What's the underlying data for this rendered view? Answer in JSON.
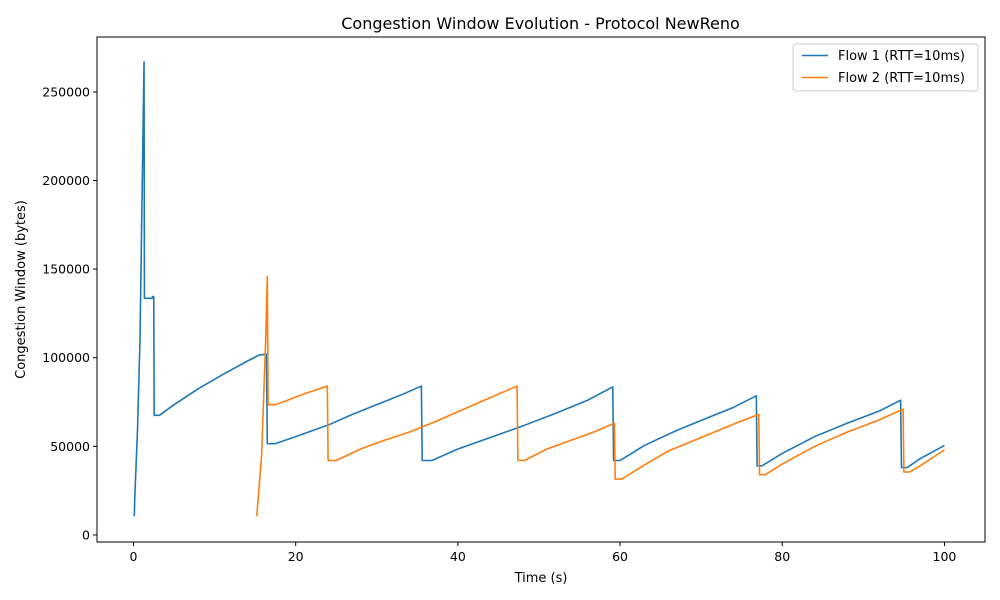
{
  "chart_data": {
    "type": "line",
    "title": "Congestion Window Evolution - Protocol NewReno",
    "xlabel": "Time (s)",
    "ylabel": "Congestion Window (bytes)",
    "xlim": [
      -4.5,
      105
    ],
    "ylim": [
      -4000,
      281000
    ],
    "xticks": [
      0,
      20,
      40,
      60,
      80,
      100
    ],
    "yticks": [
      0,
      50000,
      100000,
      150000,
      200000,
      250000
    ],
    "grid": false,
    "legend": "top-right",
    "series": [
      {
        "name": "Flow 1 (RTT=10ms)",
        "color": "#1f77b4",
        "points": [
          [
            0.1,
            10500
          ],
          [
            0.15,
            20000
          ],
          [
            0.5,
            60000
          ],
          [
            0.8,
            110000
          ],
          [
            1.3,
            267000
          ],
          [
            1.35,
            133500
          ],
          [
            2.3,
            133500
          ],
          [
            2.35,
            134500
          ],
          [
            2.5,
            134500
          ],
          [
            2.55,
            67500
          ],
          [
            3.2,
            67500
          ],
          [
            5,
            73500
          ],
          [
            8,
            82500
          ],
          [
            11,
            90500
          ],
          [
            14,
            98000
          ],
          [
            15.5,
            101500
          ],
          [
            16.4,
            102000
          ],
          [
            16.5,
            51500
          ],
          [
            17.5,
            51500
          ],
          [
            20,
            55500
          ],
          [
            24,
            62000
          ],
          [
            27,
            68000
          ],
          [
            30,
            73500
          ],
          [
            33,
            79000
          ],
          [
            35.5,
            84000
          ],
          [
            35.6,
            42000
          ],
          [
            36.8,
            42000
          ],
          [
            40,
            48500
          ],
          [
            44,
            55000
          ],
          [
            48,
            61500
          ],
          [
            52,
            68500
          ],
          [
            56,
            76000
          ],
          [
            59.1,
            83500
          ],
          [
            59.2,
            42000
          ],
          [
            60,
            42000
          ],
          [
            63,
            50500
          ],
          [
            67,
            59000
          ],
          [
            71,
            66500
          ],
          [
            74,
            72000
          ],
          [
            76.8,
            78500
          ],
          [
            76.9,
            39000
          ],
          [
            77.5,
            39000
          ],
          [
            80,
            46000
          ],
          [
            84,
            55500
          ],
          [
            88,
            63000
          ],
          [
            92,
            70000
          ],
          [
            94.6,
            76000
          ],
          [
            94.7,
            38000
          ],
          [
            95.4,
            38000
          ],
          [
            97,
            43000
          ],
          [
            100,
            50500
          ]
        ]
      },
      {
        "name": "Flow 2 (RTT=10ms)",
        "color": "#ff7f0e",
        "points": [
          [
            15.2,
            10500
          ],
          [
            15.8,
            45000
          ],
          [
            16.3,
            110000
          ],
          [
            16.5,
            146000
          ],
          [
            16.6,
            73500
          ],
          [
            17.5,
            73500
          ],
          [
            19,
            76000
          ],
          [
            21,
            79500
          ],
          [
            23.9,
            84000
          ],
          [
            24,
            42000
          ],
          [
            25,
            42000
          ],
          [
            28,
            48500
          ],
          [
            31,
            53500
          ],
          [
            34,
            58000
          ],
          [
            37,
            63500
          ],
          [
            40,
            69500
          ],
          [
            43,
            75500
          ],
          [
            47.3,
            84000
          ],
          [
            47.4,
            42000
          ],
          [
            48.2,
            42000
          ],
          [
            51,
            48500
          ],
          [
            54,
            53500
          ],
          [
            57,
            58500
          ],
          [
            59.3,
            63000
          ],
          [
            59.4,
            31500
          ],
          [
            60.2,
            31500
          ],
          [
            63,
            39500
          ],
          [
            66,
            47500
          ],
          [
            70,
            55000
          ],
          [
            74,
            62500
          ],
          [
            77.1,
            68000
          ],
          [
            77.2,
            34000
          ],
          [
            77.9,
            34000
          ],
          [
            80,
            40000
          ],
          [
            84,
            50000
          ],
          [
            88,
            58000
          ],
          [
            92,
            65000
          ],
          [
            94.9,
            71000
          ],
          [
            95,
            35500
          ],
          [
            95.7,
            35500
          ],
          [
            97,
            39000
          ],
          [
            100,
            48000
          ]
        ]
      }
    ]
  }
}
